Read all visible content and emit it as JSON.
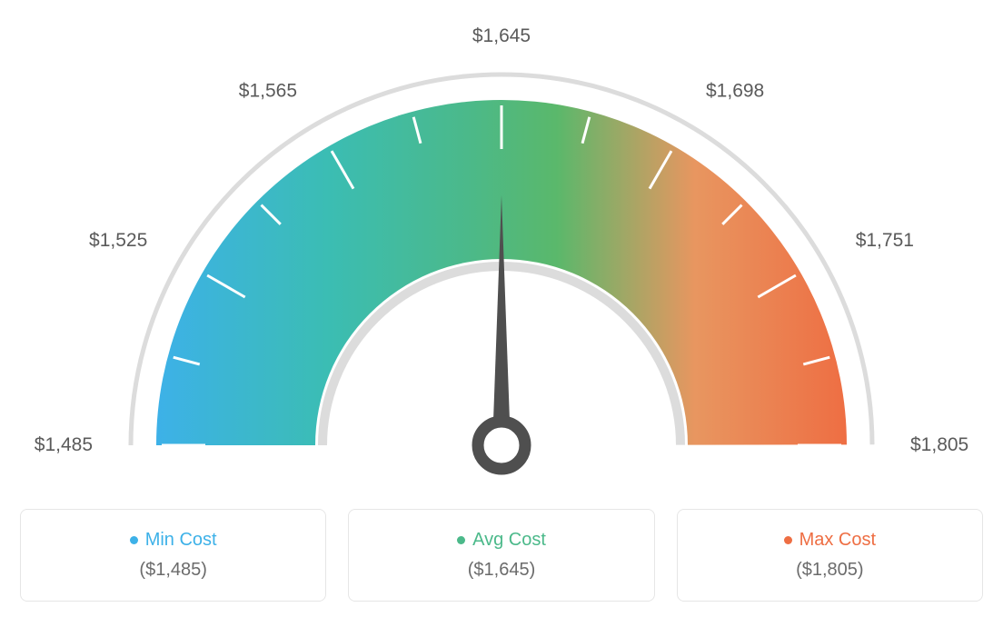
{
  "gauge": {
    "type": "gauge",
    "min_value": 1485,
    "max_value": 1805,
    "avg_value": 1645,
    "needle_value": 1645,
    "tick_labels": [
      "$1,485",
      "$1,525",
      "$1,565",
      "$1,645",
      "$1,698",
      "$1,751",
      "$1,805"
    ],
    "tick_angles": [
      -180,
      -150,
      -120,
      -90,
      -60,
      -30,
      0
    ],
    "minor_tick_angles": [
      -165,
      -135,
      -105,
      -75,
      -45,
      -15
    ],
    "outer_radius": 380,
    "inner_radius": 205,
    "arc_stroke_color": "#dcdcdc",
    "arc_stroke_width": 5,
    "gradient_colors": {
      "blue": "#3db1e8",
      "teal": "#3bbdb3",
      "green": "#4bb98a",
      "green2": "#5ab86b",
      "orange_light": "#e89660",
      "orange": "#ee6e43"
    },
    "tick_color": "#ffffff",
    "tick_width": 3,
    "needle_color": "#4f4f4f",
    "label_color": "#5a5a5a",
    "label_fontsize": 21,
    "background_color": "#ffffff"
  },
  "legend": {
    "cards": [
      {
        "dot_color": "#3db1e8",
        "title": "Min Cost",
        "value": "($1,485)"
      },
      {
        "dot_color": "#4bb98a",
        "title": "Avg Cost",
        "value": "($1,645)"
      },
      {
        "dot_color": "#ee6e43",
        "title": "Max Cost",
        "value": "($1,805)"
      }
    ],
    "title_color": "#333333",
    "value_color": "#6b6b6b",
    "border_color": "#e6e6e6",
    "border_radius": 8,
    "title_fontsize": 20,
    "value_fontsize": 20
  }
}
